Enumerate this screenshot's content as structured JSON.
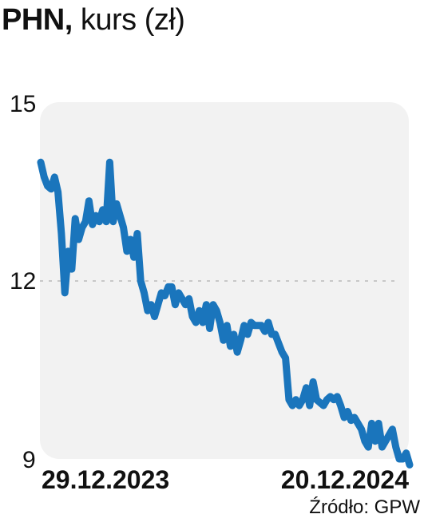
{
  "header": {
    "ticker": "PHN,",
    "subtitle": "kurs (zł)"
  },
  "source": "Źródło: GPW",
  "colors": {
    "line": "#1a75bc",
    "plot_bg": "#f2f2f2",
    "grid": "#c8c8c8",
    "text": "#111111"
  },
  "chart_data": {
    "type": "line",
    "title": "PHN, kurs (zł)",
    "xlabel": "",
    "ylabel": "",
    "ylim": [
      9,
      15
    ],
    "yticks": [
      15,
      12,
      9
    ],
    "gridlines": [
      12
    ],
    "x_tick_labels": [
      "29.12.2023",
      "20.12.2024"
    ],
    "series": [
      {
        "values": [
          14.0,
          13.75,
          13.6,
          13.55,
          13.75,
          13.5,
          12.8,
          11.8,
          12.5,
          12.2,
          13.05,
          12.7,
          12.9,
          13.0,
          13.35,
          12.95,
          13.1,
          13.0,
          13.2,
          13.0,
          14.0,
          13.0,
          13.3,
          13.1,
          12.9,
          12.5,
          12.7,
          12.4,
          12.8,
          12.0,
          11.8,
          11.5,
          11.6,
          11.4,
          11.6,
          11.8,
          11.75,
          11.9,
          11.9,
          11.6,
          11.8,
          11.7,
          11.6,
          11.7,
          11.4,
          11.3,
          11.5,
          11.3,
          11.6,
          11.2,
          11.6,
          11.5,
          11.3,
          11.0,
          11.25,
          10.9,
          11.1,
          10.8,
          11.0,
          11.25,
          11.1,
          11.3,
          11.25,
          11.25,
          11.25,
          11.15,
          11.3,
          11.1,
          11.1,
          10.95,
          10.8,
          10.7,
          10.0,
          9.9,
          10.0,
          9.9,
          10.0,
          10.2,
          9.9,
          10.3,
          10.0,
          9.95,
          9.9,
          10.0,
          10.05,
          10.0,
          10.05,
          9.9,
          9.7,
          9.8,
          9.65,
          9.7,
          9.6,
          9.5,
          9.3,
          9.2,
          9.6,
          9.3,
          9.6,
          9.2,
          9.3,
          9.4,
          9.5,
          9.2,
          9.0,
          9.0,
          9.1,
          8.9
        ]
      }
    ]
  }
}
